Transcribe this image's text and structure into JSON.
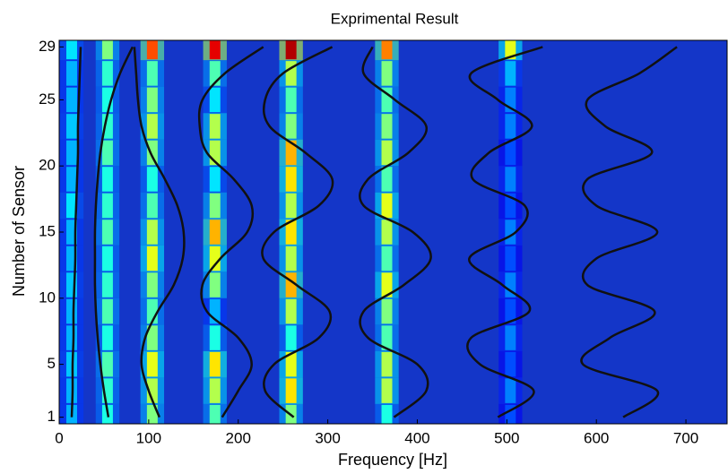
{
  "chart_data": {
    "type": "heatmap",
    "title": "Exprimental Result",
    "x_label": "Frequency [Hz]",
    "y_label": "Number of Sensor",
    "xlim": [
      0,
      746
    ],
    "ylim": [
      0.5,
      29.5
    ],
    "xticks": [
      0,
      100,
      200,
      300,
      400,
      500,
      600,
      700
    ],
    "yticks": [
      1,
      5,
      10,
      15,
      20,
      25,
      29
    ],
    "background": "#1436c8",
    "line_color": "#111111",
    "peak_width": 12,
    "sensor_points": [
      1,
      3,
      5,
      7,
      9,
      11,
      13,
      15,
      17,
      19,
      21,
      23,
      25,
      27,
      29
    ],
    "peaks": [
      {
        "freq": 14,
        "intensities": [
          0.3,
          0.3,
          0.32,
          0.3,
          0.3,
          0.32,
          0.3,
          0.3,
          0.35,
          0.3,
          0.3,
          0.32,
          0.3,
          0.3,
          0.35
        ]
      },
      {
        "freq": 54,
        "intensities": [
          0.4,
          0.42,
          0.45,
          0.4,
          0.45,
          0.42,
          0.4,
          0.45,
          0.42,
          0.4,
          0.45,
          0.42,
          0.4,
          0.42,
          0.5
        ]
      },
      {
        "freq": 104,
        "intensities": [
          0.5,
          0.55,
          0.6,
          0.5,
          0.45,
          0.5,
          0.6,
          0.55,
          0.45,
          0.4,
          0.5,
          0.55,
          0.5,
          0.45,
          0.8
        ]
      },
      {
        "freq": 174,
        "intensities": [
          0.45,
          0.55,
          0.65,
          0.4,
          0.3,
          0.5,
          0.6,
          0.7,
          0.5,
          0.35,
          0.55,
          0.55,
          0.35,
          0.45,
          0.9
        ]
      },
      {
        "freq": 259,
        "intensities": [
          0.5,
          0.65,
          0.6,
          0.4,
          0.55,
          0.7,
          0.55,
          0.65,
          0.55,
          0.65,
          0.7,
          0.5,
          0.45,
          0.55,
          0.95
        ]
      },
      {
        "freq": 366,
        "intensities": [
          0.4,
          0.55,
          0.55,
          0.45,
          0.5,
          0.6,
          0.45,
          0.55,
          0.6,
          0.45,
          0.55,
          0.5,
          0.45,
          0.5,
          0.75
        ]
      },
      {
        "freq": 504,
        "intensities": [
          0.2,
          0.25,
          0.2,
          0.25,
          0.2,
          0.25,
          0.2,
          0.25,
          0.2,
          0.25,
          0.2,
          0.25,
          0.25,
          0.3,
          0.6
        ]
      }
    ],
    "mode_shapes": [
      {
        "values": [
          14,
          15,
          15,
          16,
          16,
          17,
          18,
          18,
          19,
          20,
          21,
          21,
          22,
          23,
          24
        ]
      },
      {
        "values": [
          55,
          50,
          46,
          43,
          41,
          40,
          40,
          40,
          41,
          43,
          46,
          51,
          58,
          68,
          82
        ]
      },
      {
        "values": [
          112,
          100,
          92,
          96,
          110,
          128,
          138,
          139,
          132,
          118,
          102,
          92,
          88,
          86,
          84
        ]
      },
      {
        "values": [
          182,
          200,
          215,
          200,
          165,
          160,
          180,
          210,
          215,
          195,
          165,
          157,
          160,
          185,
          228
        ]
      },
      {
        "values": [
          262,
          230,
          240,
          290,
          302,
          265,
          228,
          240,
          290,
          305,
          275,
          235,
          230,
          250,
          305
        ]
      },
      {
        "values": [
          374,
          410,
          400,
          345,
          340,
          385,
          415,
          395,
          340,
          345,
          390,
          410,
          375,
          340,
          350
        ]
      },
      {
        "values": [
          490,
          530,
          470,
          460,
          525,
          495,
          458,
          510,
          520,
          462,
          480,
          528,
          490,
          460,
          540
        ]
      },
      {
        "values": [
          630,
          668,
          585,
          615,
          665,
          590,
          600,
          668,
          600,
          590,
          662,
          610,
          590,
          648,
          690
        ]
      }
    ]
  }
}
